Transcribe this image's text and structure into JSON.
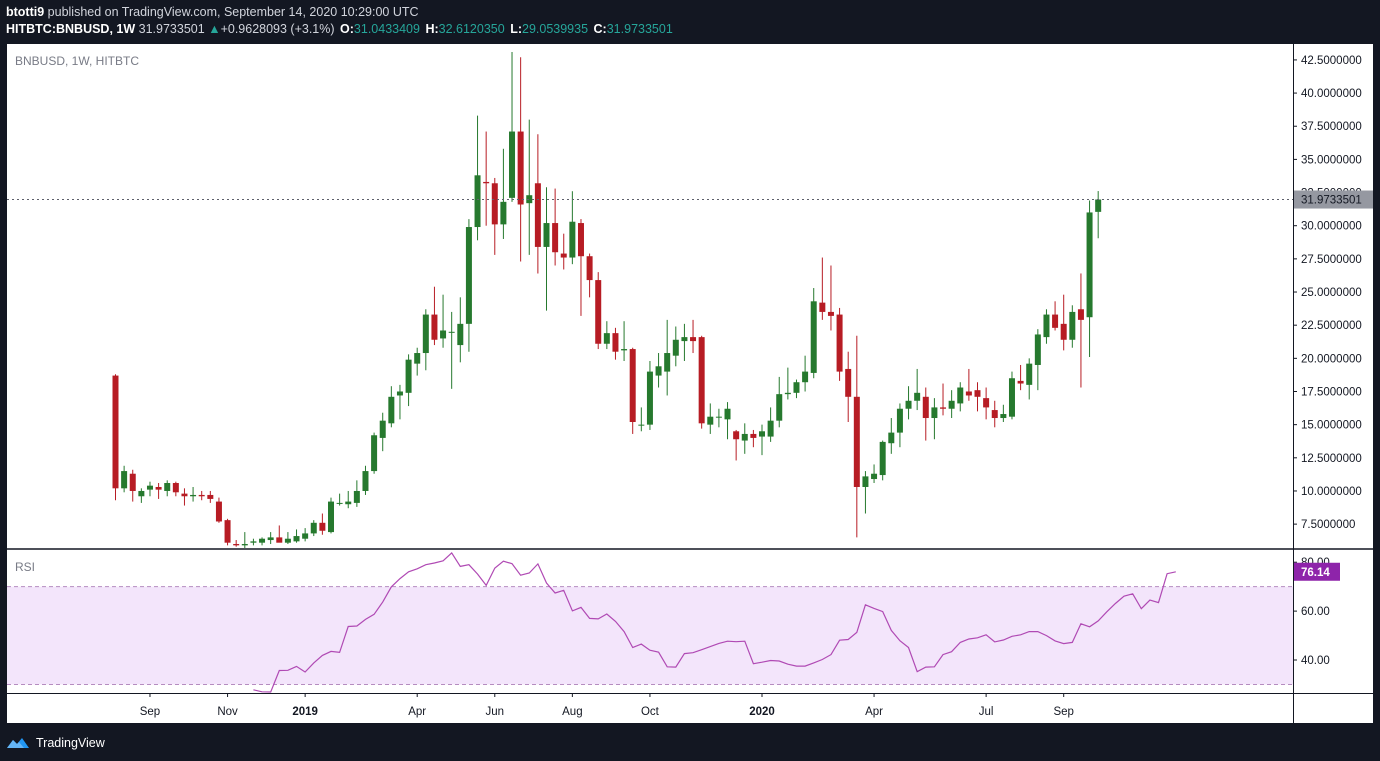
{
  "header": {
    "publisher": "btotti9",
    "published_text": "published on TradingView.com, September 14, 2020 10:29:00 UTC",
    "symbol": "HITBTC:BNBUSD, 1W",
    "last": "31.9733501",
    "change_arrow": "▲",
    "change": "+0.9628093 (+3.1%)",
    "o_label": "O:",
    "o": "31.0433409",
    "h_label": "H:",
    "h": "32.6120350",
    "l_label": "L:",
    "l": "29.0539935",
    "c_label": "C:",
    "c": "31.9733501"
  },
  "footer": {
    "brand": "TradingView",
    "logo_icon": "tradingview-logo-icon"
  },
  "colors": {
    "background": "#131722",
    "up": "#26792e",
    "down": "#b71c24",
    "rsi_line": "#b04ab4",
    "rsi_band": "#f3e5fb",
    "rsi_tag": "#8e24aa",
    "price_tag": "#9598a1"
  },
  "chart_data": [
    {
      "type": "candlestick",
      "title": "BNBUSD, 1W, HITBTC",
      "last_price_label": "31.9733501",
      "x_tick_labels": [
        {
          "label": "Sep",
          "week": 4,
          "bold": false
        },
        {
          "label": "Nov",
          "week": 13,
          "bold": false
        },
        {
          "label": "2019",
          "week": 22,
          "bold": true
        },
        {
          "label": "Apr",
          "week": 35,
          "bold": false
        },
        {
          "label": "Jun",
          "week": 44,
          "bold": false
        },
        {
          "label": "Aug",
          "week": 53,
          "bold": false
        },
        {
          "label": "Oct",
          "week": 62,
          "bold": false
        },
        {
          "label": "2020",
          "week": 75,
          "bold": true
        },
        {
          "label": "Apr",
          "week": 88,
          "bold": false
        },
        {
          "label": "Jul",
          "week": 101,
          "bold": false
        },
        {
          "label": "Sep",
          "week": 110,
          "bold": false
        }
      ],
      "y_ticks": [
        {
          "value": 7.5,
          "label": "7.5000000"
        },
        {
          "value": 10,
          "label": "10.0000000"
        },
        {
          "value": 12.5,
          "label": "12.5000000"
        },
        {
          "value": 15,
          "label": "15.0000000"
        },
        {
          "value": 17.5,
          "label": "17.5000000"
        },
        {
          "value": 20,
          "label": "20.0000000"
        },
        {
          "value": 22.5,
          "label": "22.5000000"
        },
        {
          "value": 25,
          "label": "25.0000000"
        },
        {
          "value": 27.5,
          "label": "27.5000000"
        },
        {
          "value": 30,
          "label": "30.0000000"
        },
        {
          "value": 32.5,
          "label": "32.5000000"
        },
        {
          "value": 35,
          "label": "35.0000000"
        },
        {
          "value": 37.5,
          "label": "37.5000000"
        },
        {
          "value": 40,
          "label": "40.0000000"
        },
        {
          "value": 42.5,
          "label": "42.5000000"
        }
      ],
      "ylim": [
        5.7,
        43.7
      ],
      "candles": [
        {
          "o": 18.7,
          "h": 18.8,
          "l": 9.3,
          "c": 10.2
        },
        {
          "o": 10.2,
          "h": 11.9,
          "l": 9.9,
          "c": 11.5
        },
        {
          "o": 11.3,
          "h": 11.6,
          "l": 9.2,
          "c": 10.0
        },
        {
          "o": 9.6,
          "h": 10.2,
          "l": 9.1,
          "c": 10.0
        },
        {
          "o": 10.1,
          "h": 10.7,
          "l": 9.6,
          "c": 10.4
        },
        {
          "o": 10.3,
          "h": 10.6,
          "l": 9.4,
          "c": 10.1
        },
        {
          "o": 10.0,
          "h": 10.8,
          "l": 9.6,
          "c": 10.6
        },
        {
          "o": 10.6,
          "h": 10.7,
          "l": 9.6,
          "c": 9.9
        },
        {
          "o": 9.8,
          "h": 10.2,
          "l": 8.9,
          "c": 9.6
        },
        {
          "o": 9.6,
          "h": 10.3,
          "l": 9.2,
          "c": 9.7
        },
        {
          "o": 9.7,
          "h": 10.0,
          "l": 9.3,
          "c": 9.6
        },
        {
          "o": 9.7,
          "h": 10.0,
          "l": 9.1,
          "c": 9.4
        },
        {
          "o": 9.2,
          "h": 9.5,
          "l": 7.6,
          "c": 7.7
        },
        {
          "o": 7.8,
          "h": 7.9,
          "l": 5.9,
          "c": 6.1
        },
        {
          "o": 6.0,
          "h": 6.3,
          "l": 5.8,
          "c": 5.9
        },
        {
          "o": 5.9,
          "h": 6.9,
          "l": 5.7,
          "c": 6.0
        },
        {
          "o": 6.1,
          "h": 6.4,
          "l": 5.9,
          "c": 6.2
        },
        {
          "o": 6.1,
          "h": 6.5,
          "l": 5.9,
          "c": 6.4
        },
        {
          "o": 6.3,
          "h": 6.9,
          "l": 6.0,
          "c": 6.5
        },
        {
          "o": 6.5,
          "h": 7.4,
          "l": 6.2,
          "c": 6.1
        },
        {
          "o": 6.1,
          "h": 6.9,
          "l": 6.0,
          "c": 6.4
        },
        {
          "o": 6.2,
          "h": 7.1,
          "l": 6.1,
          "c": 6.6
        },
        {
          "o": 6.4,
          "h": 7.2,
          "l": 6.2,
          "c": 6.8
        },
        {
          "o": 6.8,
          "h": 7.8,
          "l": 6.6,
          "c": 7.6
        },
        {
          "o": 7.6,
          "h": 8.3,
          "l": 6.7,
          "c": 7.0
        },
        {
          "o": 6.9,
          "h": 9.5,
          "l": 6.8,
          "c": 9.2
        },
        {
          "o": 9.1,
          "h": 9.8,
          "l": 8.9,
          "c": 9.1
        },
        {
          "o": 9.0,
          "h": 10.0,
          "l": 8.7,
          "c": 9.2
        },
        {
          "o": 9.1,
          "h": 10.8,
          "l": 8.8,
          "c": 10.0
        },
        {
          "o": 10.0,
          "h": 11.9,
          "l": 9.7,
          "c": 11.5
        },
        {
          "o": 11.5,
          "h": 14.4,
          "l": 11.3,
          "c": 14.2
        },
        {
          "o": 14.0,
          "h": 15.9,
          "l": 13.0,
          "c": 15.3
        },
        {
          "o": 15.1,
          "h": 17.9,
          "l": 14.8,
          "c": 17.1
        },
        {
          "o": 17.2,
          "h": 18.0,
          "l": 15.4,
          "c": 17.5
        },
        {
          "o": 17.4,
          "h": 20.3,
          "l": 16.4,
          "c": 19.9
        },
        {
          "o": 19.6,
          "h": 20.8,
          "l": 18.7,
          "c": 20.4
        },
        {
          "o": 20.4,
          "h": 23.7,
          "l": 19.1,
          "c": 23.3
        },
        {
          "o": 23.3,
          "h": 25.4,
          "l": 21.0,
          "c": 21.4
        },
        {
          "o": 21.5,
          "h": 24.8,
          "l": 20.8,
          "c": 22.1
        },
        {
          "o": 22.0,
          "h": 23.5,
          "l": 17.7,
          "c": 22.0
        },
        {
          "o": 21.0,
          "h": 24.6,
          "l": 19.7,
          "c": 22.6
        },
        {
          "o": 22.6,
          "h": 30.5,
          "l": 20.5,
          "c": 29.9
        },
        {
          "o": 29.9,
          "h": 38.3,
          "l": 28.9,
          "c": 33.8
        },
        {
          "o": 33.3,
          "h": 37.1,
          "l": 30.0,
          "c": 33.2
        },
        {
          "o": 33.2,
          "h": 33.6,
          "l": 27.8,
          "c": 30.1
        },
        {
          "o": 30.1,
          "h": 35.8,
          "l": 29.0,
          "c": 31.8
        },
        {
          "o": 32.1,
          "h": 43.1,
          "l": 31.8,
          "c": 37.1
        },
        {
          "o": 37.1,
          "h": 42.7,
          "l": 27.3,
          "c": 31.6
        },
        {
          "o": 31.7,
          "h": 38.0,
          "l": 27.8,
          "c": 32.3
        },
        {
          "o": 33.2,
          "h": 36.9,
          "l": 26.4,
          "c": 28.4
        },
        {
          "o": 28.4,
          "h": 32.9,
          "l": 23.6,
          "c": 30.2
        },
        {
          "o": 30.2,
          "h": 32.8,
          "l": 27.0,
          "c": 28.0
        },
        {
          "o": 27.9,
          "h": 29.4,
          "l": 26.7,
          "c": 27.6
        },
        {
          "o": 27.6,
          "h": 32.6,
          "l": 27.1,
          "c": 30.3
        },
        {
          "o": 30.2,
          "h": 30.5,
          "l": 23.2,
          "c": 27.7
        },
        {
          "o": 27.7,
          "h": 27.9,
          "l": 24.6,
          "c": 25.9
        },
        {
          "o": 25.9,
          "h": 26.5,
          "l": 20.7,
          "c": 21.1
        },
        {
          "o": 21.1,
          "h": 22.8,
          "l": 20.7,
          "c": 21.9
        },
        {
          "o": 21.9,
          "h": 22.3,
          "l": 19.9,
          "c": 20.5
        },
        {
          "o": 20.6,
          "h": 22.8,
          "l": 19.8,
          "c": 20.7
        },
        {
          "o": 20.7,
          "h": 20.8,
          "l": 14.3,
          "c": 15.2
        },
        {
          "o": 15.0,
          "h": 16.3,
          "l": 14.5,
          "c": 15.0
        },
        {
          "o": 15.0,
          "h": 19.8,
          "l": 14.6,
          "c": 19.0
        },
        {
          "o": 18.7,
          "h": 20.4,
          "l": 17.8,
          "c": 19.4
        },
        {
          "o": 19.0,
          "h": 22.9,
          "l": 17.2,
          "c": 20.4
        },
        {
          "o": 20.2,
          "h": 22.4,
          "l": 19.4,
          "c": 21.4
        },
        {
          "o": 21.3,
          "h": 22.6,
          "l": 19.8,
          "c": 21.6
        },
        {
          "o": 21.6,
          "h": 22.9,
          "l": 20.4,
          "c": 21.3
        },
        {
          "o": 21.6,
          "h": 21.7,
          "l": 14.7,
          "c": 15.1
        },
        {
          "o": 15.0,
          "h": 16.6,
          "l": 14.3,
          "c": 15.6
        },
        {
          "o": 15.6,
          "h": 16.2,
          "l": 14.8,
          "c": 15.6
        },
        {
          "o": 15.4,
          "h": 16.7,
          "l": 13.9,
          "c": 16.2
        },
        {
          "o": 14.5,
          "h": 14.6,
          "l": 12.3,
          "c": 13.9
        },
        {
          "o": 13.8,
          "h": 15.1,
          "l": 12.8,
          "c": 14.3
        },
        {
          "o": 14.3,
          "h": 14.6,
          "l": 13.3,
          "c": 14.0
        },
        {
          "o": 14.1,
          "h": 15.0,
          "l": 12.7,
          "c": 14.5
        },
        {
          "o": 14.1,
          "h": 16.3,
          "l": 13.7,
          "c": 15.3
        },
        {
          "o": 15.3,
          "h": 18.6,
          "l": 14.8,
          "c": 17.3
        },
        {
          "o": 17.3,
          "h": 19.3,
          "l": 16.9,
          "c": 17.4
        },
        {
          "o": 17.4,
          "h": 18.4,
          "l": 17.0,
          "c": 18.2
        },
        {
          "o": 18.2,
          "h": 20.2,
          "l": 17.5,
          "c": 19.0
        },
        {
          "o": 18.9,
          "h": 25.3,
          "l": 18.5,
          "c": 24.3
        },
        {
          "o": 24.2,
          "h": 27.6,
          "l": 22.9,
          "c": 23.5
        },
        {
          "o": 23.5,
          "h": 27.0,
          "l": 22.1,
          "c": 23.2
        },
        {
          "o": 23.3,
          "h": 23.8,
          "l": 18.3,
          "c": 19.0
        },
        {
          "o": 19.2,
          "h": 20.5,
          "l": 15.2,
          "c": 17.1
        },
        {
          "o": 17.1,
          "h": 21.7,
          "l": 6.5,
          "c": 10.3
        },
        {
          "o": 10.3,
          "h": 11.5,
          "l": 8.3,
          "c": 11.1
        },
        {
          "o": 10.9,
          "h": 12.0,
          "l": 10.6,
          "c": 11.3
        },
        {
          "o": 11.2,
          "h": 13.8,
          "l": 10.8,
          "c": 13.7
        },
        {
          "o": 13.6,
          "h": 15.5,
          "l": 12.8,
          "c": 14.4
        },
        {
          "o": 14.4,
          "h": 16.6,
          "l": 13.3,
          "c": 16.2
        },
        {
          "o": 16.2,
          "h": 17.9,
          "l": 15.4,
          "c": 16.8
        },
        {
          "o": 16.8,
          "h": 19.2,
          "l": 16.1,
          "c": 17.4
        },
        {
          "o": 17.1,
          "h": 17.8,
          "l": 13.8,
          "c": 15.5
        },
        {
          "o": 15.5,
          "h": 17.0,
          "l": 13.9,
          "c": 16.3
        },
        {
          "o": 16.3,
          "h": 18.1,
          "l": 15.7,
          "c": 16.2
        },
        {
          "o": 16.2,
          "h": 17.6,
          "l": 15.5,
          "c": 16.8
        },
        {
          "o": 16.6,
          "h": 18.2,
          "l": 16.0,
          "c": 17.8
        },
        {
          "o": 17.5,
          "h": 19.2,
          "l": 16.8,
          "c": 17.2
        },
        {
          "o": 17.6,
          "h": 18.2,
          "l": 16.0,
          "c": 17.1
        },
        {
          "o": 17.0,
          "h": 17.8,
          "l": 15.4,
          "c": 16.3
        },
        {
          "o": 16.1,
          "h": 16.8,
          "l": 14.8,
          "c": 15.5
        },
        {
          "o": 15.5,
          "h": 16.5,
          "l": 15.2,
          "c": 15.8
        },
        {
          "o": 15.6,
          "h": 19.0,
          "l": 15.4,
          "c": 18.5
        },
        {
          "o": 18.3,
          "h": 19.5,
          "l": 17.6,
          "c": 18.1
        },
        {
          "o": 18.0,
          "h": 20.0,
          "l": 16.9,
          "c": 19.6
        },
        {
          "o": 19.5,
          "h": 22.2,
          "l": 17.6,
          "c": 21.8
        },
        {
          "o": 21.6,
          "h": 23.7,
          "l": 21.1,
          "c": 23.3
        },
        {
          "o": 23.3,
          "h": 24.3,
          "l": 22.1,
          "c": 22.3
        },
        {
          "o": 22.6,
          "h": 24.8,
          "l": 20.6,
          "c": 21.4
        },
        {
          "o": 21.4,
          "h": 24.0,
          "l": 20.8,
          "c": 23.5
        },
        {
          "o": 23.7,
          "h": 26.4,
          "l": 17.8,
          "c": 22.9
        },
        {
          "o": 23.1,
          "h": 31.9,
          "l": 20.1,
          "c": 31.0
        },
        {
          "o": 31.0433409,
          "h": 32.612035,
          "l": 29.0539935,
          "c": 31.9733501
        }
      ]
    },
    {
      "type": "line",
      "title": "RSI",
      "last_value_label": "76.14",
      "ylim": [
        26.5,
        85
      ],
      "y_ticks": [
        {
          "value": 40,
          "label": "40.00"
        },
        {
          "value": 60,
          "label": "60.00"
        },
        {
          "value": 80,
          "label": "80.00"
        }
      ],
      "bands": {
        "upper": 70,
        "lower": 30
      },
      "start_week": 16,
      "values": [
        27.8,
        27.0,
        26.9,
        35.7,
        35.8,
        37.4,
        35.1,
        38.8,
        41.9,
        43.5,
        43.1,
        53.7,
        53.9,
        56.6,
        58.7,
        63.7,
        69.9,
        73.3,
        76.1,
        77.3,
        79.0,
        79.7,
        80.6,
        83.8,
        78.3,
        79.0,
        75.2,
        70.5,
        77.6,
        80.4,
        79.4,
        74.7,
        75.6,
        79.3,
        71.5,
        67.4,
        68.5,
        60.1,
        61.5,
        57.0,
        56.8,
        58.8,
        55.8,
        51.6,
        45.1,
        46.5,
        44.0,
        43.2,
        37.2,
        37.1,
        42.6,
        43.0,
        44.2,
        45.5,
        46.8,
        47.7,
        47.5,
        47.7,
        38.5,
        39.1,
        39.8,
        39.6,
        38.3,
        37.5,
        37.5,
        38.8,
        40.2,
        42.2,
        48.1,
        48.4,
        51.3,
        62.6,
        61.1,
        59.8,
        52.1,
        47.9,
        45.1,
        35.2,
        37.1,
        37.2,
        42.2,
        43.4,
        47.2,
        48.6,
        49.1,
        50.3,
        47.4,
        48.2,
        49.7,
        50.3,
        51.6,
        51.6,
        50.0,
        47.8,
        46.7,
        47.2,
        54.8,
        53.6,
        56.0,
        59.7,
        63.1,
        66.1,
        67.1,
        61.0,
        64.5,
        63.5,
        75.3,
        76.1
      ]
    }
  ]
}
